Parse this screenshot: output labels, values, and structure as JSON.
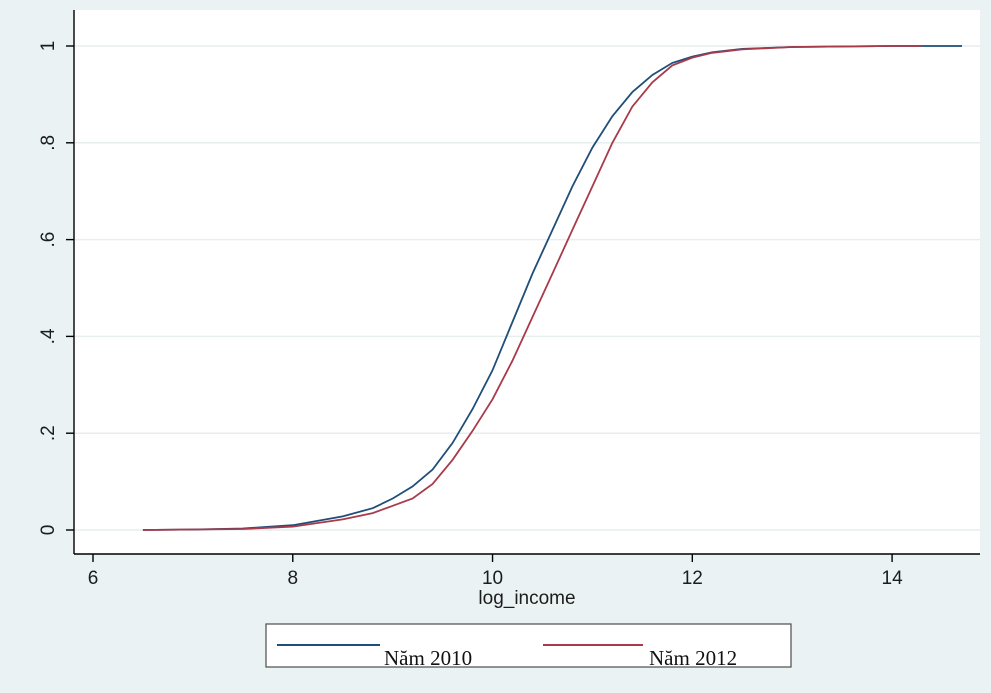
{
  "chart_data": {
    "type": "line",
    "xlabel": "log_income",
    "ylabel": "",
    "xlim": [
      6,
      14.8
    ],
    "ylim": [
      0,
      1
    ],
    "x_ticks": [
      6,
      8,
      10,
      12,
      14
    ],
    "y_ticks": [
      0,
      0.2,
      0.4,
      0.6,
      0.8,
      1
    ],
    "x_tick_labels": [
      "6",
      "8",
      "10",
      "12",
      "14"
    ],
    "y_tick_labels": [
      "0",
      ".2",
      ".4",
      ".6",
      ".8",
      "1"
    ],
    "grid": true,
    "legend_position": "bottom",
    "series": [
      {
        "name": "Năm 2010",
        "color": "#1f4e79",
        "points": [
          [
            6.5,
            0
          ],
          [
            7.0,
            0.001
          ],
          [
            7.5,
            0.003
          ],
          [
            8.0,
            0.01
          ],
          [
            8.5,
            0.028
          ],
          [
            8.8,
            0.045
          ],
          [
            9.0,
            0.065
          ],
          [
            9.2,
            0.09
          ],
          [
            9.4,
            0.125
          ],
          [
            9.6,
            0.18
          ],
          [
            9.8,
            0.25
          ],
          [
            10.0,
            0.33
          ],
          [
            10.2,
            0.43
          ],
          [
            10.4,
            0.53
          ],
          [
            10.6,
            0.62
          ],
          [
            10.8,
            0.71
          ],
          [
            11.0,
            0.79
          ],
          [
            11.2,
            0.855
          ],
          [
            11.4,
            0.905
          ],
          [
            11.6,
            0.94
          ],
          [
            11.8,
            0.965
          ],
          [
            12.0,
            0.978
          ],
          [
            12.2,
            0.987
          ],
          [
            12.5,
            0.994
          ],
          [
            13.0,
            0.998
          ],
          [
            14.0,
            1.0
          ],
          [
            14.7,
            1.0
          ]
        ]
      },
      {
        "name": "Năm 2012",
        "color": "#a83a4a",
        "points": [
          [
            6.5,
            0
          ],
          [
            7.0,
            0.001
          ],
          [
            7.5,
            0.002
          ],
          [
            8.0,
            0.007
          ],
          [
            8.5,
            0.022
          ],
          [
            8.8,
            0.035
          ],
          [
            9.0,
            0.05
          ],
          [
            9.2,
            0.065
          ],
          [
            9.4,
            0.095
          ],
          [
            9.6,
            0.145
          ],
          [
            9.8,
            0.205
          ],
          [
            10.0,
            0.27
          ],
          [
            10.2,
            0.35
          ],
          [
            10.4,
            0.44
          ],
          [
            10.6,
            0.53
          ],
          [
            10.8,
            0.62
          ],
          [
            11.0,
            0.71
          ],
          [
            11.2,
            0.8
          ],
          [
            11.4,
            0.875
          ],
          [
            11.6,
            0.925
          ],
          [
            11.8,
            0.96
          ],
          [
            12.0,
            0.976
          ],
          [
            12.2,
            0.986
          ],
          [
            12.5,
            0.993
          ],
          [
            13.0,
            0.998
          ],
          [
            14.0,
            1.0
          ],
          [
            14.3,
            1.0
          ]
        ]
      }
    ]
  }
}
